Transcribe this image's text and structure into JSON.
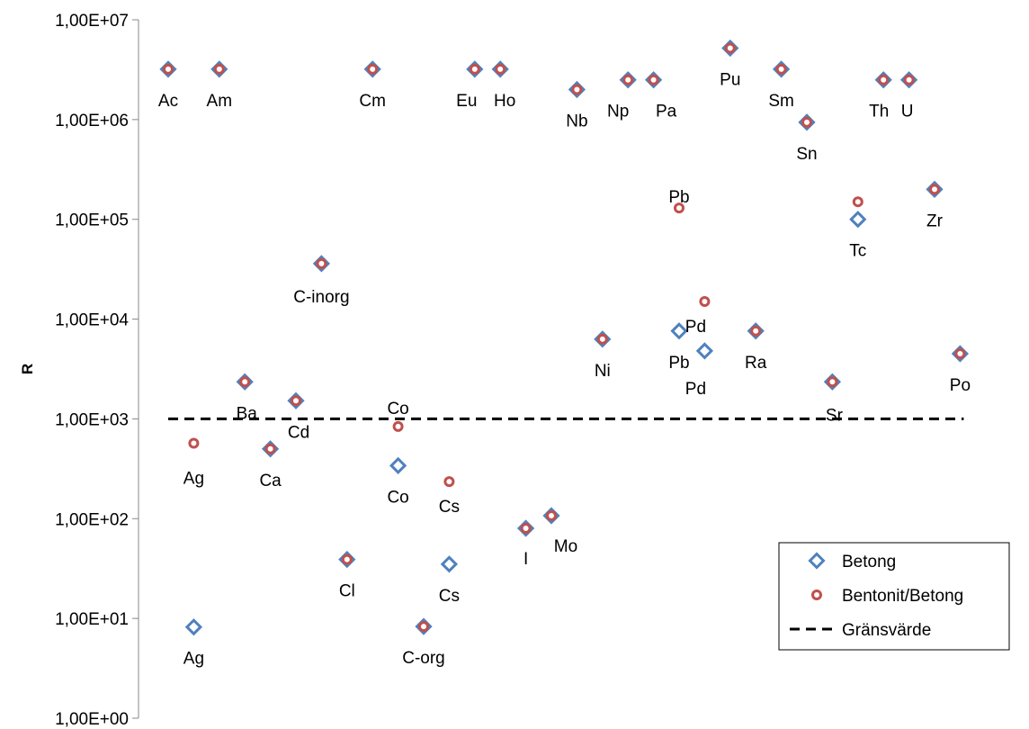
{
  "chart_data": {
    "type": "scatter",
    "title": "",
    "xlabel": "",
    "ylabel": "R",
    "y_scale": "log",
    "ylim": [
      1,
      10000000
    ],
    "y_tick_labels": [
      "1,00E+00",
      "1,00E+01",
      "1,00E+02",
      "1,00E+03",
      "1,00E+04",
      "1,00E+05",
      "1,00E+06",
      "1,00E+07"
    ],
    "grid": false,
    "legend_position": "bottom-right",
    "colors": {
      "betong": "#4F81BD",
      "bentonit": "#C0504D",
      "threshold": "#000000"
    },
    "threshold": {
      "name": "Gränsvärde",
      "value": 1000
    },
    "series": [
      {
        "name": "Betong",
        "marker": "diamond",
        "points": [
          {
            "label": "Ac",
            "x": 1,
            "y": 3200000
          },
          {
            "label": "Ag",
            "x": 2,
            "y": 8.2
          },
          {
            "label": "Am",
            "x": 3,
            "y": 3200000
          },
          {
            "label": "Ba",
            "x": 4,
            "y": 2350
          },
          {
            "label": "Ca",
            "x": 5,
            "y": 500
          },
          {
            "label": "Cd",
            "x": 6,
            "y": 1520
          },
          {
            "label": "C-inorg",
            "x": 7,
            "y": 36000
          },
          {
            "label": "Cl",
            "x": 8,
            "y": 39
          },
          {
            "label": "Cm",
            "x": 9,
            "y": 3200000
          },
          {
            "label": "Co",
            "x": 10,
            "y": 340
          },
          {
            "label": "C-org",
            "x": 11,
            "y": 8.3
          },
          {
            "label": "Cs",
            "x": 12,
            "y": 35
          },
          {
            "label": "Eu",
            "x": 13,
            "y": 3200000
          },
          {
            "label": "Ho",
            "x": 14,
            "y": 3200000
          },
          {
            "label": "I",
            "x": 15,
            "y": 80
          },
          {
            "label": "Mo",
            "x": 16,
            "y": 107
          },
          {
            "label": "Nb",
            "x": 17,
            "y": 2000000
          },
          {
            "label": "Ni",
            "x": 18,
            "y": 6300
          },
          {
            "label": "Np",
            "x": 19,
            "y": 2500000
          },
          {
            "label": "Pa",
            "x": 20,
            "y": 2500000
          },
          {
            "label": "Pb",
            "x": 21,
            "y": 7600
          },
          {
            "label": "Pd",
            "x": 22,
            "y": 4800
          },
          {
            "label": "Pu",
            "x": 23,
            "y": 5200000
          },
          {
            "label": "Ra",
            "x": 24,
            "y": 7600
          },
          {
            "label": "Sm",
            "x": 25,
            "y": 3200000
          },
          {
            "label": "Sn",
            "x": 26,
            "y": 940000
          },
          {
            "label": "Sr",
            "x": 27,
            "y": 2350
          },
          {
            "label": "Tc",
            "x": 28,
            "y": 100000
          },
          {
            "label": "Th",
            "x": 29,
            "y": 2500000
          },
          {
            "label": "U",
            "x": 30,
            "y": 2500000
          },
          {
            "label": "Zr",
            "x": 31,
            "y": 200000
          },
          {
            "label": "Po",
            "x": 32,
            "y": 4500
          }
        ]
      },
      {
        "name": "Bentonit/Betong",
        "marker": "circle",
        "points": [
          {
            "label": "Ac",
            "x": 1,
            "y": 3200000
          },
          {
            "label": "Ag",
            "x": 2,
            "y": 570
          },
          {
            "label": "Am",
            "x": 3,
            "y": 3200000
          },
          {
            "label": "Ba",
            "x": 4,
            "y": 2350
          },
          {
            "label": "Ca",
            "x": 5,
            "y": 500
          },
          {
            "label": "Cd",
            "x": 6,
            "y": 1520
          },
          {
            "label": "C-inorg",
            "x": 7,
            "y": 36000
          },
          {
            "label": "Cl",
            "x": 8,
            "y": 39
          },
          {
            "label": "Cm",
            "x": 9,
            "y": 3200000
          },
          {
            "label": "Co",
            "x": 10,
            "y": 840
          },
          {
            "label": "C-org",
            "x": 11,
            "y": 8.3
          },
          {
            "label": "Cs",
            "x": 12,
            "y": 235
          },
          {
            "label": "Eu",
            "x": 13,
            "y": 3200000
          },
          {
            "label": "Ho",
            "x": 14,
            "y": 3200000
          },
          {
            "label": "I",
            "x": 15,
            "y": 80
          },
          {
            "label": "Mo",
            "x": 16,
            "y": 107
          },
          {
            "label": "Nb",
            "x": 17,
            "y": 2000000
          },
          {
            "label": "Ni",
            "x": 18,
            "y": 6300
          },
          {
            "label": "Np",
            "x": 19,
            "y": 2500000
          },
          {
            "label": "Pa",
            "x": 20,
            "y": 2500000
          },
          {
            "label": "Pb",
            "x": 21,
            "y": 130000
          },
          {
            "label": "Pd",
            "x": 22,
            "y": 15000
          },
          {
            "label": "Pu",
            "x": 23,
            "y": 5200000
          },
          {
            "label": "Ra",
            "x": 24,
            "y": 7600
          },
          {
            "label": "Sm",
            "x": 25,
            "y": 3200000
          },
          {
            "label": "Sn",
            "x": 26,
            "y": 940000
          },
          {
            "label": "Sr",
            "x": 27,
            "y": 2350
          },
          {
            "label": "Tc",
            "x": 28,
            "y": 150000
          },
          {
            "label": "Th",
            "x": 29,
            "y": 2500000
          },
          {
            "label": "U",
            "x": 30,
            "y": 2500000
          },
          {
            "label": "Zr",
            "x": 31,
            "y": 200000
          },
          {
            "label": "Po",
            "x": 32,
            "y": 4500
          }
        ]
      }
    ],
    "data_labels": [
      {
        "text": "Ac",
        "series": 0,
        "point": 0
      },
      {
        "text": "Ag",
        "series": 0,
        "point": 1
      },
      {
        "text": "Ag",
        "series": 1,
        "point": 1
      },
      {
        "text": "Am",
        "series": 0,
        "point": 2
      },
      {
        "text": "Ba",
        "series": 0,
        "point": 3
      },
      {
        "text": "Ca",
        "series": 0,
        "point": 4
      },
      {
        "text": "Cd",
        "series": 0,
        "point": 5
      },
      {
        "text": "C-inorg",
        "series": 0,
        "point": 6
      },
      {
        "text": "Cl",
        "series": 0,
        "point": 7
      },
      {
        "text": "Cm",
        "series": 0,
        "point": 8
      },
      {
        "text": "Co",
        "series": 0,
        "point": 9
      },
      {
        "text": "Co",
        "series": 1,
        "point": 9
      },
      {
        "text": "C-org",
        "series": 0,
        "point": 10
      },
      {
        "text": "Cs",
        "series": 0,
        "point": 11
      },
      {
        "text": "Cs",
        "series": 1,
        "point": 11
      },
      {
        "text": "Eu",
        "series": 0,
        "point": 12
      },
      {
        "text": "Ho",
        "series": 0,
        "point": 13
      },
      {
        "text": "I",
        "series": 0,
        "point": 14
      },
      {
        "text": "Mo",
        "series": 0,
        "point": 15
      },
      {
        "text": "Nb",
        "series": 0,
        "point": 16
      },
      {
        "text": "Ni",
        "series": 0,
        "point": 17
      },
      {
        "text": "Np",
        "series": 0,
        "point": 18
      },
      {
        "text": "Pa",
        "series": 0,
        "point": 19
      },
      {
        "text": "Pb",
        "series": 0,
        "point": 20
      },
      {
        "text": "Pb",
        "series": 1,
        "point": 20
      },
      {
        "text": "Pd",
        "series": 0,
        "point": 21
      },
      {
        "text": "Pd",
        "series": 1,
        "point": 21
      },
      {
        "text": "Pu",
        "series": 0,
        "point": 22
      },
      {
        "text": "Ra",
        "series": 0,
        "point": 23
      },
      {
        "text": "Sm",
        "series": 0,
        "point": 24
      },
      {
        "text": "Sn",
        "series": 0,
        "point": 25
      },
      {
        "text": "Sr",
        "series": 0,
        "point": 26
      },
      {
        "text": "Tc",
        "series": 0,
        "point": 27
      },
      {
        "text": "Th",
        "series": 0,
        "point": 28
      },
      {
        "text": "U",
        "series": 0,
        "point": 29
      },
      {
        "text": "Zr",
        "series": 0,
        "point": 30
      },
      {
        "text": "Po",
        "series": 0,
        "point": 31
      }
    ],
    "legend": {
      "entries": [
        {
          "label": "Betong",
          "marker": "diamond"
        },
        {
          "label": "Bentonit/Betong",
          "marker": "circle"
        },
        {
          "label": "Gränsvärde",
          "marker": "dashed-line"
        }
      ]
    }
  }
}
